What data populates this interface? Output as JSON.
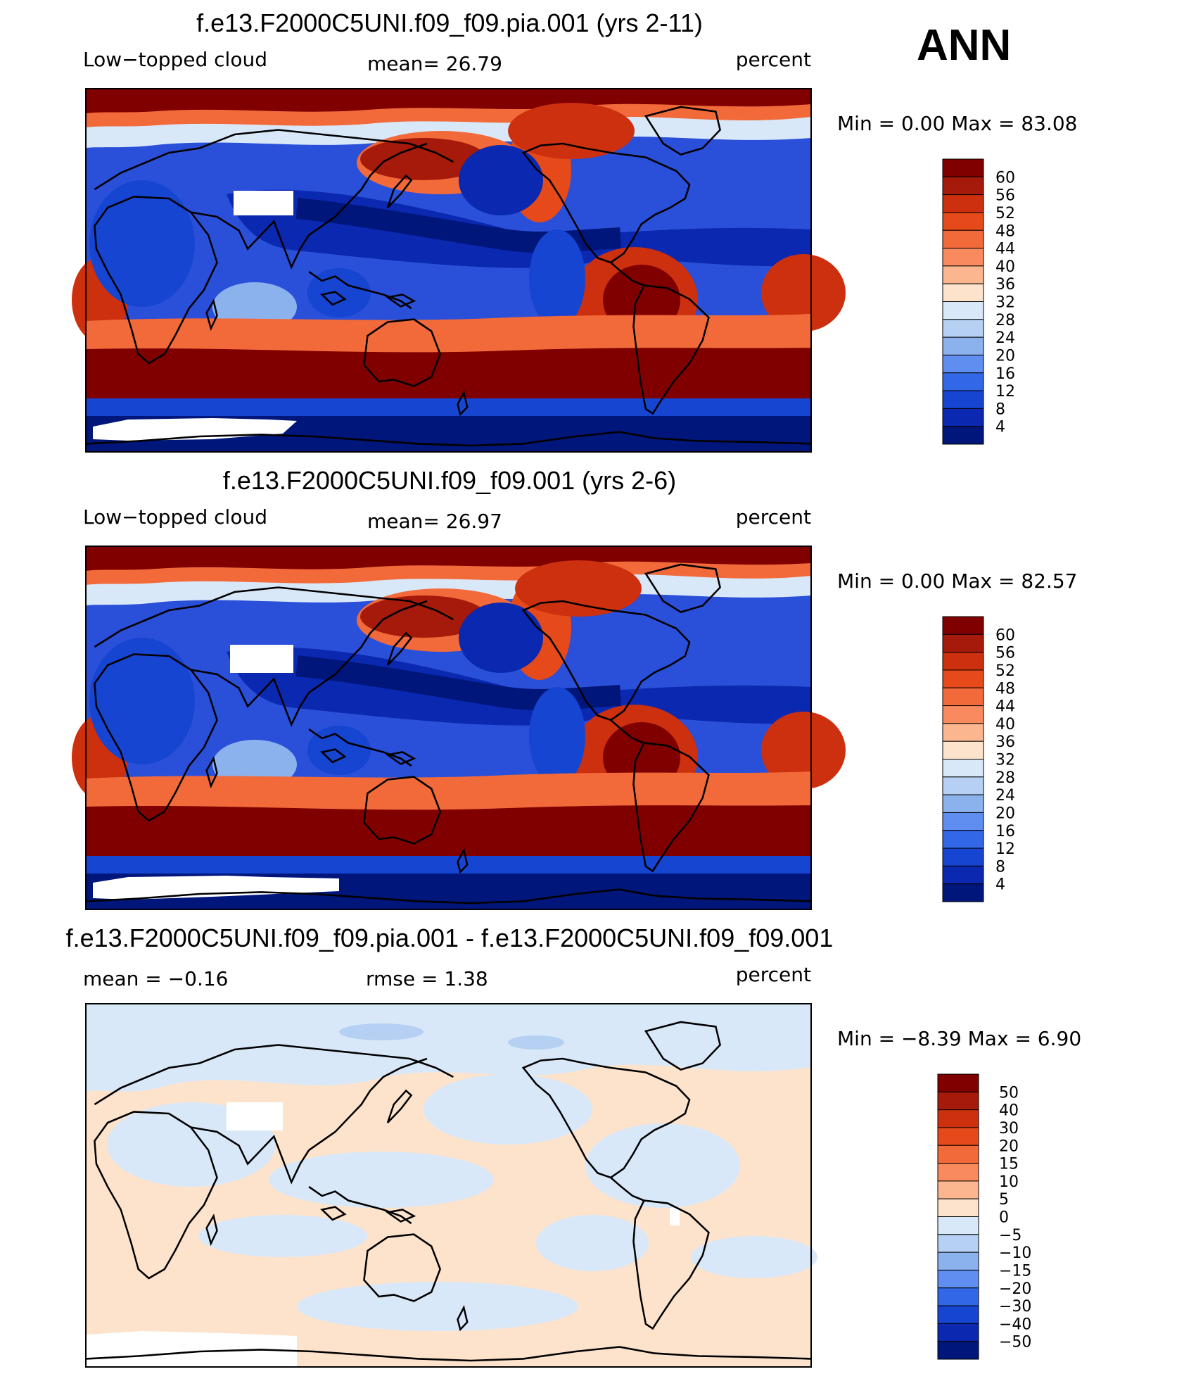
{
  "season": "ANN",
  "chart_data": [
    {
      "type": "heatmap",
      "title": "f.e13.F2000C5UNI.f09_f09.pia.001 (yrs 2-11)",
      "variable": "Low−topped cloud",
      "units": "percent",
      "stat_text": "mean=   26.79",
      "minmax_text": "Min =     0.00  Max =    83.08",
      "mean": 26.79,
      "min": 0.0,
      "max": 83.08,
      "colorbar": {
        "levels": [
          "60",
          "56",
          "52",
          "48",
          "44",
          "40",
          "36",
          "32",
          "28",
          "24",
          "20",
          "16",
          "12",
          "8",
          "4"
        ],
        "colors": [
          "#800000",
          "#a51a0a",
          "#cc300f",
          "#e64a1a",
          "#f26a3a",
          "#f88a5e",
          "#fbb690",
          "#fde3cc",
          "#d8e8f8",
          "#b5d0f2",
          "#8cb2ee",
          "#5f8df0",
          "#3268e8",
          "#1645d2",
          "#0a28b0",
          "#00167a"
        ]
      }
    },
    {
      "type": "heatmap",
      "title": "f.e13.F2000C5UNI.f09_f09.001 (yrs 2-6)",
      "variable": "Low−topped cloud",
      "units": "percent",
      "stat_text": "mean=   26.97",
      "minmax_text": "Min =     0.00  Max =    82.57",
      "mean": 26.97,
      "min": 0.0,
      "max": 82.57,
      "colorbar": {
        "levels": [
          "60",
          "56",
          "52",
          "48",
          "44",
          "40",
          "36",
          "32",
          "28",
          "24",
          "20",
          "16",
          "12",
          "8",
          "4"
        ],
        "colors": [
          "#800000",
          "#a51a0a",
          "#cc300f",
          "#e64a1a",
          "#f26a3a",
          "#f88a5e",
          "#fbb690",
          "#fde3cc",
          "#d8e8f8",
          "#b5d0f2",
          "#8cb2ee",
          "#5f8df0",
          "#3268e8",
          "#1645d2",
          "#0a28b0",
          "#00167a"
        ]
      }
    },
    {
      "type": "heatmap",
      "title": "f.e13.F2000C5UNI.f09_f09.pia.001 - f.e13.F2000C5UNI.f09_f09.001",
      "units": "percent",
      "stat_text": "mean =   −0.16",
      "rmse_text": "rmse =     1.38",
      "minmax_text": "Min =   −8.39  Max =     6.90",
      "mean": -0.16,
      "rmse": 1.38,
      "min": -8.39,
      "max": 6.9,
      "colorbar": {
        "levels": [
          "50",
          "40",
          "30",
          "20",
          "15",
          "10",
          "5",
          "0",
          "−5",
          "−10",
          "−15",
          "−20",
          "−30",
          "−40",
          "−50"
        ],
        "colors": [
          "#800000",
          "#a51a0a",
          "#cc300f",
          "#e64a1a",
          "#f26a3a",
          "#f88a5e",
          "#fbb690",
          "#fde3cc",
          "#d8e8f8",
          "#b5d0f2",
          "#8cb2ee",
          "#5f8df0",
          "#3268e8",
          "#1645d2",
          "#0a28b0",
          "#00167a"
        ]
      }
    }
  ]
}
